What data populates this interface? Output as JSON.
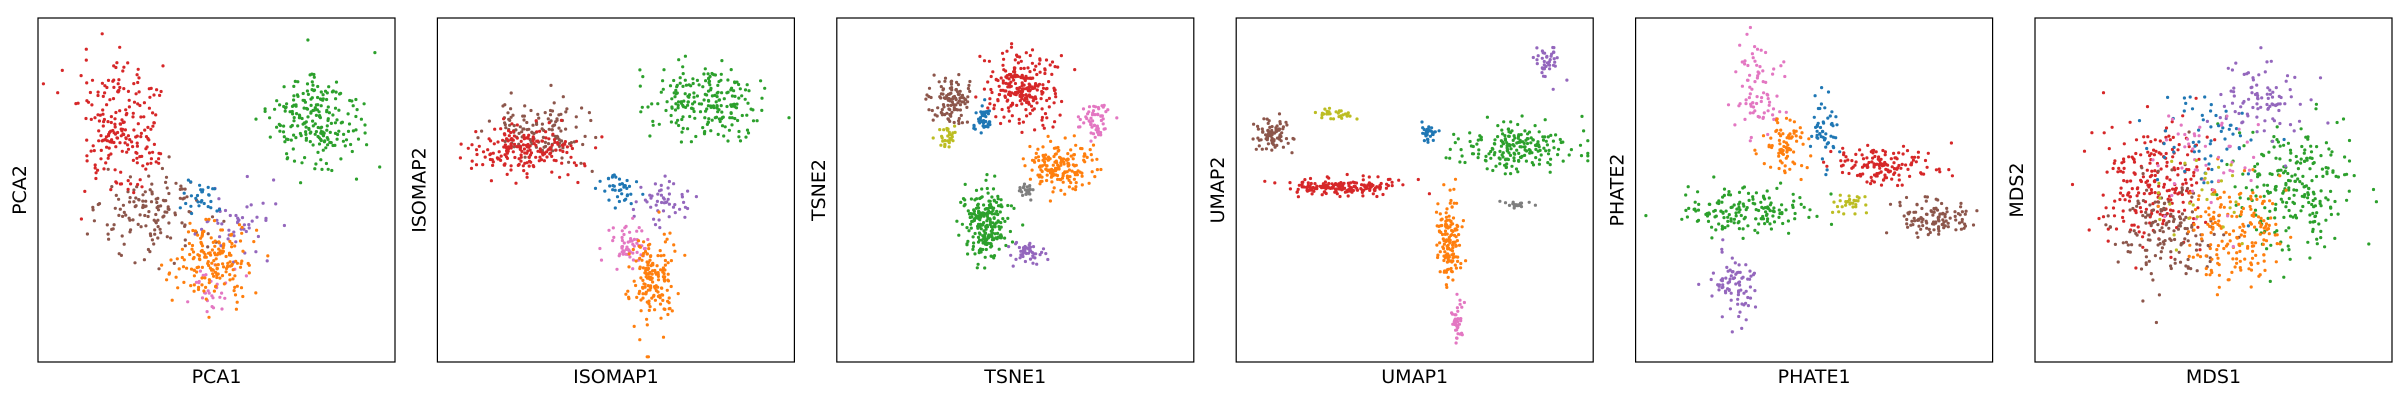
{
  "colors": {
    "tab_blue": "#1f77b4",
    "tab_orange": "#ff7f0e",
    "tab_green": "#2ca02c",
    "tab_red": "#d62728",
    "tab_purple": "#9467bd",
    "tab_brown": "#8c564b",
    "tab_pink": "#e377c2",
    "tab_gray": "#7f7f7f",
    "tab_olive": "#bcbd22"
  },
  "chart_data": [
    {
      "type": "scatter",
      "title": "",
      "xlabel": "PCA1",
      "ylabel": "PCA2",
      "xlim": [
        0,
        10
      ],
      "ylim": [
        0,
        10
      ],
      "grid": false,
      "legend": "none",
      "ticks": "hidden",
      "clusters": [
        {
          "color": "#8c564b",
          "center": [
            3.2,
            4.2
          ],
          "spread": [
            1.4,
            1.3
          ],
          "count": 140
        },
        {
          "color": "#d62728",
          "center": [
            2.3,
            6.8
          ],
          "spread": [
            1.0,
            1.6
          ],
          "count": 220
        },
        {
          "color": "#2ca02c",
          "center": [
            7.8,
            7.0
          ],
          "spread": [
            1.2,
            1.3
          ],
          "count": 220
        },
        {
          "color": "#9467bd",
          "center": [
            5.5,
            4.0
          ],
          "spread": [
            0.9,
            0.8
          ],
          "count": 50
        },
        {
          "color": "#e377c2",
          "center": [
            4.8,
            2.2
          ],
          "spread": [
            0.6,
            0.6
          ],
          "count": 30
        },
        {
          "color": "#ff7f0e",
          "center": [
            4.9,
            2.9
          ],
          "spread": [
            0.9,
            1.0
          ],
          "count": 180
        },
        {
          "color": "#1f77b4",
          "center": [
            4.6,
            4.8
          ],
          "spread": [
            0.5,
            0.5
          ],
          "count": 30
        }
      ]
    },
    {
      "type": "scatter",
      "title": "",
      "xlabel": "ISOMAP1",
      "ylabel": "ISOMAP2",
      "xlim": [
        0,
        10
      ],
      "ylim": [
        0,
        10
      ],
      "grid": false,
      "legend": "none",
      "ticks": "hidden",
      "clusters": [
        {
          "color": "#8c564b",
          "center": [
            3.0,
            6.8
          ],
          "spread": [
            1.2,
            0.8
          ],
          "count": 130
        },
        {
          "color": "#d62728",
          "center": [
            2.4,
            6.2
          ],
          "spread": [
            1.3,
            0.7
          ],
          "count": 200
        },
        {
          "color": "#2ca02c",
          "center": [
            7.5,
            7.6
          ],
          "spread": [
            1.4,
            1.0
          ],
          "count": 220
        },
        {
          "color": "#9467bd",
          "center": [
            6.3,
            4.6
          ],
          "spread": [
            0.7,
            0.7
          ],
          "count": 50
        },
        {
          "color": "#e377c2",
          "center": [
            5.4,
            3.4
          ],
          "spread": [
            0.5,
            0.7
          ],
          "count": 60
        },
        {
          "color": "#ff7f0e",
          "center": [
            6.0,
            2.4
          ],
          "spread": [
            0.6,
            1.2
          ],
          "count": 170
        },
        {
          "color": "#1f77b4",
          "center": [
            5.2,
            5.1
          ],
          "spread": [
            0.5,
            0.4
          ],
          "count": 40
        }
      ]
    },
    {
      "type": "scatter",
      "title": "",
      "xlabel": "TSNE1",
      "ylabel": "TSNE2",
      "xlim": [
        0,
        10
      ],
      "ylim": [
        0,
        10
      ],
      "grid": false,
      "legend": "none",
      "ticks": "hidden",
      "clusters": [
        {
          "color": "#d62728",
          "center": [
            5.2,
            8.0
          ],
          "spread": [
            0.8,
            0.9
          ],
          "count": 240
        },
        {
          "color": "#8c564b",
          "center": [
            3.2,
            7.6
          ],
          "spread": [
            0.5,
            0.6
          ],
          "count": 110
        },
        {
          "color": "#2ca02c",
          "center": [
            4.2,
            4.0
          ],
          "spread": [
            0.6,
            0.9
          ],
          "count": 230
        },
        {
          "color": "#ff7f0e",
          "center": [
            6.3,
            5.7
          ],
          "spread": [
            0.9,
            0.6
          ],
          "count": 170
        },
        {
          "color": "#e377c2",
          "center": [
            7.2,
            7.0
          ],
          "spread": [
            0.4,
            0.5
          ],
          "count": 60
        },
        {
          "color": "#9467bd",
          "center": [
            5.3,
            3.2
          ],
          "spread": [
            0.4,
            0.3
          ],
          "count": 50
        },
        {
          "color": "#1f77b4",
          "center": [
            4.1,
            7.0
          ],
          "spread": [
            0.25,
            0.3
          ],
          "count": 40
        },
        {
          "color": "#bcbd22",
          "center": [
            3.1,
            6.5
          ],
          "spread": [
            0.3,
            0.3
          ],
          "count": 30
        },
        {
          "color": "#7f7f7f",
          "center": [
            5.3,
            5.0
          ],
          "spread": [
            0.2,
            0.2
          ],
          "count": 25
        }
      ]
    },
    {
      "type": "scatter",
      "title": "",
      "xlabel": "UMAP1",
      "ylabel": "UMAP2",
      "xlim": [
        0,
        10
      ],
      "ylim": [
        0,
        10
      ],
      "grid": false,
      "legend": "none",
      "ticks": "hidden",
      "clusters": [
        {
          "color": "#d62728",
          "center": [
            3.0,
            5.1
          ],
          "spread": [
            1.3,
            0.2
          ],
          "count": 170
        },
        {
          "color": "#8c564b",
          "center": [
            1.0,
            6.6
          ],
          "spread": [
            0.4,
            0.5
          ],
          "count": 80
        },
        {
          "color": "#bcbd22",
          "center": [
            2.8,
            7.2
          ],
          "spread": [
            0.5,
            0.15
          ],
          "count": 30
        },
        {
          "color": "#2ca02c",
          "center": [
            7.8,
            6.2
          ],
          "spread": [
            1.5,
            0.6
          ],
          "count": 200
        },
        {
          "color": "#9467bd",
          "center": [
            8.7,
            8.7
          ],
          "spread": [
            0.3,
            0.5
          ],
          "count": 40
        },
        {
          "color": "#ff7f0e",
          "center": [
            6.0,
            3.5
          ],
          "spread": [
            0.3,
            1.1
          ],
          "count": 140
        },
        {
          "color": "#e377c2",
          "center": [
            6.2,
            1.2
          ],
          "spread": [
            0.15,
            0.6
          ],
          "count": 40
        },
        {
          "color": "#1f77b4",
          "center": [
            5.4,
            6.7
          ],
          "spread": [
            0.2,
            0.25
          ],
          "count": 30
        },
        {
          "color": "#7f7f7f",
          "center": [
            7.9,
            4.6
          ],
          "spread": [
            0.4,
            0.1
          ],
          "count": 20
        }
      ]
    },
    {
      "type": "scatter",
      "title": "",
      "xlabel": "PHATE1",
      "ylabel": "PHATE2",
      "xlim": [
        0,
        10
      ],
      "ylim": [
        0,
        10
      ],
      "grid": false,
      "legend": "none",
      "ticks": "hidden",
      "clusters": [
        {
          "color": "#2ca02c",
          "center": [
            3.0,
            4.4
          ],
          "spread": [
            1.6,
            0.6
          ],
          "count": 160
        },
        {
          "color": "#d62728",
          "center": [
            7.0,
            5.7
          ],
          "spread": [
            1.4,
            0.5
          ],
          "count": 140
        },
        {
          "color": "#8c564b",
          "center": [
            8.4,
            4.2
          ],
          "spread": [
            0.9,
            0.5
          ],
          "count": 110
        },
        {
          "color": "#e377c2",
          "center": [
            3.4,
            8.0
          ],
          "spread": [
            0.6,
            1.3
          ],
          "count": 80
        },
        {
          "color": "#9467bd",
          "center": [
            2.8,
            2.2
          ],
          "spread": [
            0.6,
            1.0
          ],
          "count": 80
        },
        {
          "color": "#ff7f0e",
          "center": [
            4.2,
            6.3
          ],
          "spread": [
            0.5,
            0.7
          ],
          "count": 80
        },
        {
          "color": "#1f77b4",
          "center": [
            5.3,
            6.8
          ],
          "spread": [
            0.4,
            0.9
          ],
          "count": 50
        },
        {
          "color": "#bcbd22",
          "center": [
            6.0,
            4.6
          ],
          "spread": [
            0.5,
            0.3
          ],
          "count": 30
        }
      ]
    },
    {
      "type": "scatter",
      "title": "",
      "xlabel": "MDS1",
      "ylabel": "MDS2",
      "xlim": [
        0,
        10
      ],
      "ylim": [
        0,
        10
      ],
      "grid": false,
      "legend": "none",
      "ticks": "hidden",
      "clusters": [
        {
          "color": "#d62728",
          "center": [
            3.3,
            5.2
          ],
          "spread": [
            1.4,
            1.6
          ],
          "count": 240
        },
        {
          "color": "#8c564b",
          "center": [
            3.7,
            3.9
          ],
          "spread": [
            1.4,
            1.4
          ],
          "count": 160
        },
        {
          "color": "#2ca02c",
          "center": [
            7.2,
            5.0
          ],
          "spread": [
            1.4,
            1.6
          ],
          "count": 240
        },
        {
          "color": "#ff7f0e",
          "center": [
            5.6,
            3.8
          ],
          "spread": [
            1.3,
            1.4
          ],
          "count": 180
        },
        {
          "color": "#9467bd",
          "center": [
            6.3,
            7.6
          ],
          "spread": [
            1.2,
            1.0
          ],
          "count": 90
        },
        {
          "color": "#1f77b4",
          "center": [
            4.9,
            6.6
          ],
          "spread": [
            1.4,
            1.3
          ],
          "count": 60
        },
        {
          "color": "#e377c2",
          "center": [
            5.0,
            6.0
          ],
          "spread": [
            1.5,
            1.5
          ],
          "count": 50
        },
        {
          "color": "#bcbd22",
          "center": [
            4.6,
            5.0
          ],
          "spread": [
            1.6,
            1.6
          ],
          "count": 30
        }
      ]
    }
  ]
}
